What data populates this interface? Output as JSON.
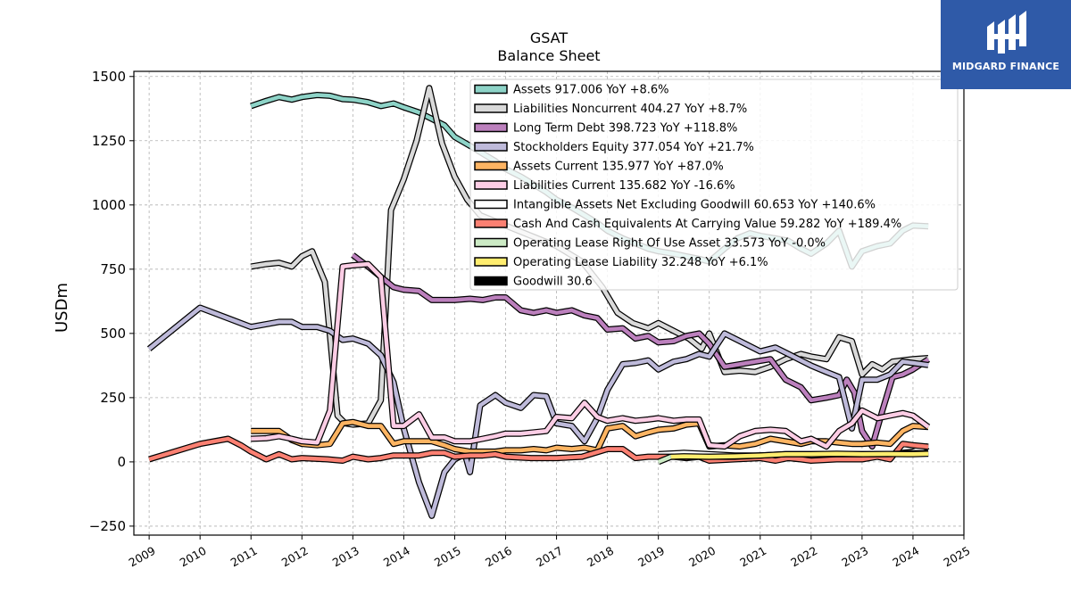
{
  "brand": {
    "name": "MIDGARD FINANCE",
    "bg_color": "#2f5aa8"
  },
  "chart_data": {
    "type": "line",
    "title": "GSAT",
    "subtitle": "Balance  Sheet",
    "xlabel": "",
    "ylabel": "USDm",
    "xlim": [
      2008.7,
      2025.0
    ],
    "ylim": [
      -285,
      1520
    ],
    "yticks": [
      -250,
      0,
      250,
      500,
      750,
      1000,
      1250,
      1500
    ],
    "ytick_labels": [
      "−250",
      "0",
      "250",
      "500",
      "750",
      "1000",
      "1250",
      "1500"
    ],
    "xticks": [
      2009,
      2010,
      2011,
      2012,
      2013,
      2014,
      2015,
      2016,
      2017,
      2018,
      2019,
      2020,
      2021,
      2022,
      2023,
      2024,
      2025
    ],
    "grid": true,
    "legend_position": "top-right",
    "series": [
      {
        "name": "Assets",
        "label": "Assets  917.006 YoY +8.6%",
        "color": "#8dd3c7",
        "x": [
          2011.0,
          2011.3,
          2011.55,
          2011.8,
          2012.0,
          2012.3,
          2012.55,
          2012.8,
          2013.0,
          2013.3,
          2013.55,
          2013.8,
          2014.0,
          2014.3,
          2014.55,
          2014.8,
          2015.0,
          2015.3,
          2015.55,
          2015.8,
          2016.0,
          2016.3,
          2016.55,
          2016.8,
          2017.0,
          2017.3,
          2017.55,
          2017.8,
          2018.0,
          2018.3,
          2018.55,
          2018.8,
          2019.0,
          2019.3,
          2019.55,
          2019.8,
          2020.0,
          2020.3,
          2020.55,
          2020.8,
          2021.0,
          2021.3,
          2021.55,
          2021.8,
          2022.0,
          2022.3,
          2022.55,
          2022.8,
          2023.0,
          2023.3,
          2023.55,
          2023.8,
          2024.0,
          2024.3
        ],
        "y": [
          1385,
          1405,
          1420,
          1410,
          1420,
          1428,
          1425,
          1412,
          1410,
          1400,
          1385,
          1395,
          1380,
          1360,
          1335,
          1310,
          1265,
          1230,
          1200,
          1170,
          1140,
          1110,
          1080,
          1050,
          1020,
          990,
          960,
          930,
          900,
          870,
          850,
          830,
          820,
          810,
          800,
          790,
          780,
          830,
          870,
          890,
          880,
          870,
          860,
          830,
          810,
          850,
          900,
          760,
          820,
          840,
          850,
          900,
          920,
          917
        ]
      },
      {
        "name": "Liabilities Noncurrent",
        "label": "Liabilities Noncurrent  404.27 YoY +8.7%",
        "color": "#d9d9d9",
        "x": [
          2011.0,
          2011.3,
          2011.55,
          2011.8,
          2012.0,
          2012.2,
          2012.45,
          2012.7,
          2012.85,
          2013.0,
          2013.3,
          2013.55,
          2013.75,
          2014.0,
          2014.25,
          2014.5,
          2014.75,
          2015.0,
          2015.25,
          2015.5,
          2016.0,
          2016.5,
          2017.0,
          2017.5,
          2017.9,
          2018.2,
          2018.5,
          2018.8,
          2019.0,
          2019.3,
          2019.6,
          2019.85,
          2020.0,
          2020.3,
          2020.6,
          2020.9,
          2021.2,
          2021.5,
          2021.8,
          2022.0,
          2022.3,
          2022.55,
          2022.8,
          2023.0,
          2023.2,
          2023.4,
          2023.6,
          2023.8,
          2024.0,
          2024.3
        ],
        "y": [
          760,
          770,
          775,
          760,
          800,
          820,
          700,
          180,
          150,
          145,
          150,
          240,
          980,
          1100,
          1250,
          1455,
          1240,
          1110,
          1020,
          960,
          920,
          880,
          840,
          780,
          680,
          580,
          540,
          520,
          540,
          510,
          480,
          440,
          500,
          350,
          355,
          350,
          370,
          400,
          420,
          410,
          400,
          485,
          470,
          340,
          380,
          360,
          390,
          395,
          400,
          404
        ]
      },
      {
        "name": "Long Term Debt",
        "label": "Long Term Debt  398.723 YoY +118.8%",
        "color": "#bc80bd",
        "x": [
          2013.0,
          2013.3,
          2013.55,
          2013.8,
          2014.0,
          2014.3,
          2014.55,
          2014.8,
          2015.0,
          2015.3,
          2015.55,
          2015.8,
          2016.0,
          2016.3,
          2016.55,
          2016.8,
          2017.0,
          2017.3,
          2017.55,
          2017.8,
          2018.0,
          2018.3,
          2018.55,
          2018.8,
          2019.0,
          2019.3,
          2019.55,
          2019.8,
          2020.0,
          2020.3,
          2020.6,
          2020.9,
          2021.2,
          2021.5,
          2021.8,
          2022.0,
          2022.3,
          2022.55,
          2022.7,
          2022.85,
          2023.0,
          2023.2,
          2023.4,
          2023.6,
          2023.8,
          2024.0,
          2024.3
        ],
        "y": [
          805,
          760,
          720,
          680,
          670,
          665,
          630,
          630,
          630,
          635,
          630,
          640,
          640,
          590,
          580,
          590,
          580,
          590,
          570,
          560,
          515,
          520,
          480,
          490,
          465,
          470,
          490,
          500,
          460,
          370,
          380,
          390,
          400,
          320,
          290,
          240,
          250,
          260,
          320,
          270,
          120,
          60,
          200,
          330,
          340,
          360,
          399
        ]
      },
      {
        "name": "Stockholders Equity",
        "label": "Stockholders Equity  377.054 YoY +21.7%",
        "color": "#bebada",
        "x": [
          2009.0,
          2010.0,
          2011.0,
          2011.55,
          2011.8,
          2012.0,
          2012.3,
          2012.55,
          2012.8,
          2013.0,
          2013.3,
          2013.55,
          2013.8,
          2014.0,
          2014.3,
          2014.55,
          2014.8,
          2015.0,
          2015.2,
          2015.3,
          2015.5,
          2015.8,
          2016.0,
          2016.3,
          2016.55,
          2016.8,
          2017.0,
          2017.3,
          2017.55,
          2017.8,
          2018.0,
          2018.3,
          2018.55,
          2018.8,
          2019.0,
          2019.3,
          2019.55,
          2019.8,
          2020.0,
          2020.3,
          2020.6,
          2020.9,
          2021.0,
          2021.3,
          2021.55,
          2021.8,
          2022.0,
          2022.3,
          2022.55,
          2022.8,
          2023.0,
          2023.3,
          2023.55,
          2023.8,
          2024.0,
          2024.3
        ],
        "y": [
          440,
          600,
          525,
          545,
          545,
          525,
          525,
          510,
          475,
          480,
          460,
          415,
          310,
          130,
          -80,
          -210,
          -40,
          10,
          30,
          -40,
          220,
          260,
          230,
          210,
          260,
          255,
          150,
          140,
          80,
          170,
          280,
          380,
          385,
          395,
          360,
          390,
          400,
          420,
          410,
          500,
          470,
          440,
          430,
          445,
          420,
          395,
          375,
          350,
          330,
          130,
          320,
          320,
          340,
          390,
          385,
          377
        ]
      },
      {
        "name": "Assets Current",
        "label": "Assets Current  135.977 YoY +87.0%",
        "color": "#fdb462",
        "x": [
          2011.0,
          2011.3,
          2011.55,
          2011.8,
          2012.0,
          2012.3,
          2012.55,
          2012.8,
          2013.0,
          2013.3,
          2013.55,
          2013.8,
          2014.0,
          2014.3,
          2014.55,
          2014.8,
          2015.0,
          2015.3,
          2015.55,
          2015.8,
          2016.0,
          2016.3,
          2016.55,
          2016.8,
          2017.0,
          2017.3,
          2017.55,
          2017.8,
          2018.0,
          2018.3,
          2018.55,
          2018.8,
          2019.0,
          2019.3,
          2019.55,
          2019.8,
          2020.0,
          2020.3,
          2020.6,
          2020.9,
          2021.2,
          2021.5,
          2021.8,
          2022.0,
          2022.3,
          2022.55,
          2022.8,
          2023.0,
          2023.3,
          2023.55,
          2023.8,
          2024.0,
          2024.3
        ],
        "y": [
          120,
          120,
          120,
          85,
          70,
          65,
          70,
          150,
          155,
          140,
          140,
          70,
          80,
          80,
          80,
          65,
          50,
          40,
          40,
          40,
          45,
          45,
          50,
          45,
          55,
          50,
          55,
          45,
          130,
          140,
          100,
          115,
          125,
          130,
          145,
          150,
          60,
          65,
          60,
          70,
          90,
          80,
          70,
          80,
          80,
          75,
          70,
          70,
          75,
          70,
          120,
          140,
          136
        ]
      },
      {
        "name": "Liabilities Current",
        "label": "Liabilities Current  135.682 YoY -16.6%",
        "color": "#fccde5",
        "x": [
          2011.0,
          2011.3,
          2011.55,
          2011.8,
          2012.0,
          2012.3,
          2012.55,
          2012.8,
          2013.0,
          2013.3,
          2013.55,
          2013.8,
          2014.0,
          2014.3,
          2014.55,
          2014.8,
          2015.0,
          2015.3,
          2015.55,
          2015.8,
          2016.0,
          2016.3,
          2016.55,
          2016.8,
          2017.0,
          2017.3,
          2017.55,
          2017.8,
          2018.0,
          2018.3,
          2018.55,
          2018.8,
          2019.0,
          2019.3,
          2019.55,
          2019.8,
          2020.0,
          2020.3,
          2020.6,
          2020.9,
          2021.2,
          2021.5,
          2021.8,
          2022.0,
          2022.3,
          2022.55,
          2022.8,
          2023.0,
          2023.3,
          2023.55,
          2023.8,
          2024.0,
          2024.3
        ],
        "y": [
          90,
          92,
          100,
          90,
          80,
          75,
          200,
          760,
          765,
          770,
          720,
          140,
          140,
          185,
          95,
          95,
          80,
          80,
          90,
          100,
          110,
          110,
          115,
          120,
          175,
          170,
          230,
          175,
          160,
          170,
          160,
          165,
          170,
          160,
          165,
          165,
          65,
          60,
          100,
          120,
          125,
          120,
          80,
          90,
          60,
          120,
          150,
          200,
          170,
          180,
          190,
          180,
          136
        ]
      },
      {
        "name": "Intangible Assets Net Excluding Goodwill",
        "label": "Intangible Assets Net Excluding Goodwill  60.653 YoY +140.6%",
        "color": "#ffffff",
        "x": [
          2019.0,
          2019.5,
          2020.0,
          2020.5,
          2021.0,
          2021.5,
          2022.0,
          2022.5,
          2023.0,
          2023.5,
          2024.0,
          2024.3
        ],
        "y": [
          30,
          35,
          30,
          25,
          25,
          25,
          25,
          25,
          25,
          28,
          40,
          61
        ]
      },
      {
        "name": "Cash And Cash Equivalents At Carrying Value",
        "label": "Cash And Cash Equivalents At Carrying Value  59.282 YoY +189.4%",
        "color": "#fb8072",
        "x": [
          2009.0,
          2010.0,
          2010.55,
          2010.8,
          2011.0,
          2011.3,
          2011.55,
          2011.8,
          2012.0,
          2012.5,
          2012.8,
          2013.0,
          2013.3,
          2013.55,
          2013.8,
          2014.0,
          2014.3,
          2014.55,
          2014.8,
          2015.0,
          2015.3,
          2015.55,
          2015.8,
          2016.0,
          2016.5,
          2017.0,
          2017.5,
          2018.0,
          2018.3,
          2018.55,
          2018.8,
          2019.0,
          2019.3,
          2019.55,
          2019.8,
          2020.0,
          2020.5,
          2021.0,
          2021.3,
          2021.55,
          2021.8,
          2022.0,
          2022.5,
          2023.0,
          2023.3,
          2023.55,
          2023.8,
          2024.0,
          2024.3
        ],
        "y": [
          10,
          70,
          90,
          65,
          40,
          10,
          30,
          10,
          15,
          10,
          5,
          20,
          10,
          15,
          25,
          25,
          25,
          35,
          35,
          20,
          25,
          25,
          30,
          20,
          15,
          15,
          20,
          50,
          50,
          15,
          20,
          20,
          20,
          15,
          20,
          5,
          10,
          15,
          5,
          15,
          10,
          5,
          10,
          10,
          20,
          10,
          70,
          65,
          59
        ]
      },
      {
        "name": "Operating Lease Right Of Use Asset",
        "label": "Operating Lease Right Of Use Asset  33.573 YoY -0.0%",
        "color": "#ccebc5",
        "x": [
          2019.0,
          2019.25,
          2019.5,
          2020.0,
          2020.5,
          2021.0,
          2021.5,
          2022.0,
          2022.5,
          2023.0,
          2023.5,
          2024.0,
          2024.3
        ],
        "y": [
          0,
          20,
          20,
          20,
          20,
          25,
          30,
          30,
          30,
          30,
          30,
          34,
          34
        ]
      },
      {
        "name": "Operating Lease Liability",
        "label": "Operating Lease Liability  32.248 YoY +6.1%",
        "color": "#ffed6f",
        "x": [
          2019.25,
          2019.5,
          2020.0,
          2020.5,
          2021.0,
          2021.5,
          2022.0,
          2022.5,
          2023.0,
          2023.5,
          2024.0,
          2024.3
        ],
        "y": [
          20,
          22,
          20,
          22,
          25,
          30,
          30,
          32,
          30,
          31,
          30,
          32
        ]
      },
      {
        "name": "Goodwill",
        "label": "Goodwill  30.6",
        "color": "#000000",
        "x": [],
        "y": []
      }
    ]
  }
}
